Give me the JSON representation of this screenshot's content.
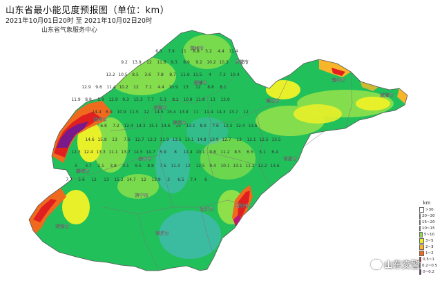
{
  "header": {
    "title": "山东省最小能见度预报图（单位：km）",
    "valid_time": "2021年10月01日20时 至 2021年10月02日20时",
    "issuer": "山东省气象服务中心"
  },
  "legend": {
    "unit": "km",
    "items": [
      {
        "label": ">30",
        "color": "#ffffff"
      },
      {
        "label": "20~30",
        "color": "#d9f0f7"
      },
      {
        "label": "15~20",
        "color": "#56b8e8"
      },
      {
        "label": "10~15",
        "color": "#21c05a"
      },
      {
        "label": "5~10",
        "color": "#8ee04a"
      },
      {
        "label": "3~5",
        "color": "#e8f02a"
      },
      {
        "label": "2~3",
        "color": "#f7b62a"
      },
      {
        "label": "1~2",
        "color": "#f06a1e"
      },
      {
        "label": "0.5~1",
        "color": "#e02020"
      },
      {
        "label": "0.2~0.5",
        "color": "#c01870"
      },
      {
        "label": "0~0.2",
        "color": "#7a1a8a"
      }
    ]
  },
  "watermark": "山东交警",
  "values": [
    "6.3",
    "7.9",
    "11",
    "8.8",
    "5.2",
    "4.4",
    "11.4",
    "9.2",
    "13.9",
    "12",
    "11.8",
    "9.3",
    "8.9",
    "9.2",
    "10.2",
    "10.3",
    "13.2",
    "10.5",
    "8.5",
    "3.6",
    "7.8",
    "8.7",
    "11.6",
    "11.5",
    "4",
    "7.3",
    "10.4",
    "12.9",
    "9.6",
    "11.4",
    "10.2",
    "12",
    "7.1",
    "4.4",
    "10.9",
    "13",
    "12",
    "8.8",
    "8.1",
    "11.9",
    "8.8",
    "5.9",
    "12.9",
    "9.3",
    "15.3",
    "7.7",
    "5.3",
    "8.2",
    "10.8",
    "11.8",
    "13",
    "13.9",
    "14.4",
    "6.9",
    "10.9",
    "11.5",
    "12",
    "14.5",
    "15.4",
    "13.9",
    "11",
    "11.4",
    "14.3",
    "13.7",
    "12",
    "6.8",
    "7.2",
    "12.4",
    "14.3",
    "15.1",
    "14.6",
    "13",
    "13.1",
    "8.9",
    "7.6",
    "12.5",
    "12.4",
    "13.6",
    "14.6",
    "15.8",
    "13",
    "7.6",
    "12.7",
    "12.3",
    "11.9",
    "13.5",
    "13.1",
    "14.8",
    "13.9",
    "12.7",
    "13",
    "12.1",
    "12.5",
    "13.5",
    "12.3",
    "12.4",
    "13.3",
    "11.1",
    "13.7",
    "14.5",
    "14.7",
    "5.9",
    "8",
    "11.4",
    "10.1",
    "9.8",
    "11.2",
    "8.5",
    "6.5",
    "5.1",
    "6.4",
    "5",
    "3.7",
    "2.1",
    "3.8",
    "3.1",
    "9.5",
    "8.8",
    "7.5",
    "11.3",
    "12",
    "12.5",
    "9.4",
    "10.1",
    "13.1",
    "11.2",
    "12.2",
    "13.6",
    "7.7",
    "5.6",
    "12",
    "13",
    "15.2",
    "14.7",
    "12",
    "13.9",
    "3",
    "6.5",
    "7.4",
    "6"
  ],
  "city_labels": [
    "东营市",
    "滨州市",
    "德州市",
    "聊城市",
    "济南市",
    "淄博市",
    "潍坊市",
    "烟台市",
    "威海市",
    "青岛市",
    "日照市",
    "临沂市",
    "枣庄市",
    "济宁市",
    "泰安市",
    "莱芜市",
    "菏泽市"
  ]
}
